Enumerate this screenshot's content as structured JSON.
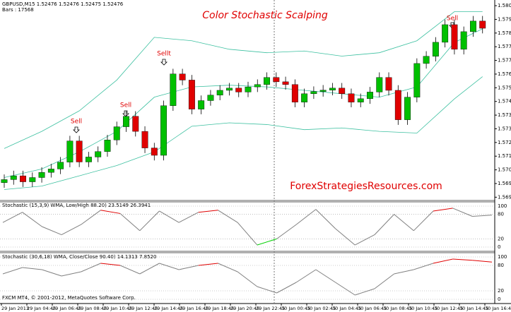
{
  "header": {
    "symbol_info": "GBPUSD,M15  1.52476 1.52476 1.52475 1.52476",
    "bars_info": "Bars : 17568"
  },
  "footer": "FXCM MT4, © 2001-2012, MetaQuotes Software Corp.",
  "time_axis": [
    "29 Jan 2013",
    "29 Jan 04:45",
    "29 Jan 06:45",
    "29 Jan 08:45",
    "29 Jan 10:45",
    "29 Jan 12:45",
    "29 Jan 14:45",
    "29 Jan 16:45",
    "29 Jan 18:45",
    "29 Jan 20:45",
    "29 Jan 22:45",
    "30 Jan 00:45",
    "30 Jan 02:45",
    "30 Jan 04:45",
    "30 Jan 06:45",
    "30 Jan 08:45",
    "30 Jan 10:45",
    "30 Jan 12:45",
    "30 Jan 14:45",
    "30 Jan 16:45"
  ],
  "chart_data": [
    {
      "type": "candlestick",
      "title": "Color Stochastic Scalping",
      "watermark": "ForexStrategiesResources.com",
      "annotations": [
        "Sell",
        "Sell",
        "Sellt",
        "Sell"
      ],
      "up_color": "#00c000",
      "down_color": "#e00000",
      "open": [
        1.57,
        1.57018,
        1.5704,
        1.57005,
        1.5703,
        1.5706,
        1.5708,
        1.5712,
        1.57244,
        1.57121,
        1.5715,
        1.57182,
        1.5725,
        1.57327,
        1.57388,
        1.573,
        1.57203,
        1.5716,
        1.5745,
        1.57636,
        1.576,
        1.5743,
        1.5748,
        1.57512,
        1.5754,
        1.57553,
        1.5753,
        1.5756,
        1.57574,
        1.57615,
        1.5759,
        1.57574,
        1.57471,
        1.5752,
        1.57533,
        1.57541,
        1.57553,
        1.5752,
        1.57471,
        1.57491,
        1.5753,
        1.57615,
        1.5754,
        1.57368,
        1.575,
        1.57697,
        1.57739,
        1.57821,
        1.57924,
        1.5778,
        1.57883,
        1.57945
      ],
      "high": [
        1.57048,
        1.5707,
        1.5707,
        1.5706,
        1.5709,
        1.5711,
        1.5715,
        1.57274,
        1.57274,
        1.5718,
        1.57212,
        1.5728,
        1.57357,
        1.57418,
        1.57418,
        1.5733,
        1.57233,
        1.5748,
        1.57666,
        1.57666,
        1.5763,
        1.5751,
        1.57542,
        1.5757,
        1.57583,
        1.57583,
        1.5759,
        1.57604,
        1.57645,
        1.57645,
        1.5762,
        1.57604,
        1.5755,
        1.57563,
        1.57571,
        1.57583,
        1.57583,
        1.5755,
        1.57521,
        1.5756,
        1.57645,
        1.57645,
        1.5757,
        1.5753,
        1.57727,
        1.57769,
        1.57851,
        1.57954,
        1.57954,
        1.57913,
        1.57975,
        1.57975
      ],
      "low": [
        1.5697,
        1.56988,
        1.56975,
        1.56975,
        1.57,
        1.5703,
        1.5705,
        1.5709,
        1.57091,
        1.57091,
        1.5712,
        1.57152,
        1.5722,
        1.57297,
        1.5727,
        1.57173,
        1.5713,
        1.5713,
        1.5742,
        1.5757,
        1.574,
        1.574,
        1.5745,
        1.57482,
        1.5751,
        1.575,
        1.575,
        1.5753,
        1.57544,
        1.5756,
        1.57544,
        1.57441,
        1.57441,
        1.5749,
        1.57503,
        1.57511,
        1.5749,
        1.57441,
        1.57441,
        1.57461,
        1.575,
        1.5751,
        1.57338,
        1.57338,
        1.5747,
        1.57667,
        1.57709,
        1.57791,
        1.5775,
        1.5775,
        1.57853,
        1.57873
      ],
      "close": [
        1.57018,
        1.5704,
        1.57005,
        1.5703,
        1.5706,
        1.5708,
        1.5712,
        1.57244,
        1.57121,
        1.5715,
        1.57182,
        1.5725,
        1.57327,
        1.57388,
        1.573,
        1.57203,
        1.5716,
        1.5745,
        1.57636,
        1.576,
        1.5743,
        1.5748,
        1.57512,
        1.5754,
        1.57553,
        1.5753,
        1.5756,
        1.57574,
        1.57615,
        1.5759,
        1.57574,
        1.57471,
        1.5752,
        1.57533,
        1.57541,
        1.57553,
        1.5752,
        1.57471,
        1.57491,
        1.5753,
        1.57615,
        1.5754,
        1.57368,
        1.575,
        1.57697,
        1.57739,
        1.57821,
        1.57924,
        1.5778,
        1.57883,
        1.57945,
        1.57903
      ],
      "bands": {
        "color": "#3cc0a0",
        "x": [
          0,
          4,
          8,
          12,
          16,
          20,
          24,
          28,
          32,
          36,
          40,
          44,
          48,
          51
        ],
        "series": [
          {
            "values": [
              1.572,
              1.573,
              1.5742,
              1.576,
              1.5785,
              1.5783,
              1.5778,
              1.5776,
              1.5777,
              1.5774,
              1.5776,
              1.5783,
              1.58,
              1.58
            ]
          },
          {
            "values": [
              1.5703,
              1.5708,
              1.5718,
              1.573,
              1.575,
              1.5756,
              1.5757,
              1.5756,
              1.5754,
              1.5752,
              1.575,
              1.5756,
              1.5782,
              1.579
            ]
          },
          {
            "values": [
              1.5696,
              1.5698,
              1.5704,
              1.571,
              1.5718,
              1.5733,
              1.5735,
              1.5734,
              1.5731,
              1.5732,
              1.573,
              1.5729,
              1.5749,
              1.5762
            ]
          }
        ]
      },
      "ylim": [
        1.569,
        1.5806
      ],
      "yticks": [
        1.58035,
        1.57955,
        1.57875,
        1.57795,
        1.57715,
        1.57635,
        1.57555,
        1.57475,
        1.57395,
        1.57315,
        1.57235,
        1.57155,
        1.57075,
        1.56995,
        1.56915
      ]
    },
    {
      "type": "line",
      "title": "Stochastic (15,3,9) WMA, Low/High 88.20) 23.5149 26.3941",
      "color": "#808080",
      "high_color": "#e00000",
      "low_color": "#00d000",
      "values": [
        60,
        85,
        50,
        30,
        55,
        90,
        82,
        40,
        88,
        60,
        85,
        90,
        60,
        5,
        20,
        55,
        92,
        45,
        5,
        30,
        80,
        40,
        88,
        95,
        75,
        78
      ],
      "ylim": [
        0,
        100
      ],
      "yticks": [
        0,
        20,
        80,
        100
      ]
    },
    {
      "type": "line",
      "title": "Stochastic (30,6,18) WMA, Close/Close 90.40) 14.1313 7.8520",
      "color": "#808080",
      "high_color": "#e00000",
      "low_color": "#00d000",
      "values": [
        60,
        75,
        70,
        55,
        65,
        85,
        80,
        60,
        85,
        70,
        80,
        85,
        65,
        30,
        15,
        40,
        70,
        40,
        10,
        25,
        60,
        70,
        85,
        95,
        92,
        88
      ],
      "ylim": [
        0,
        100
      ],
      "yticks": [
        0,
        20,
        80,
        100
      ]
    }
  ]
}
